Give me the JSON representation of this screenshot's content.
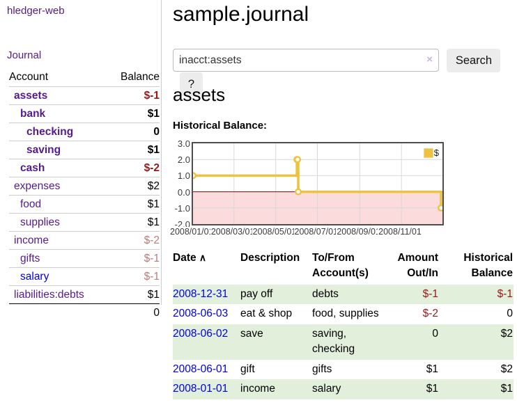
{
  "app": {
    "brand": "hledger-web",
    "nav_journal": "Journal"
  },
  "sidebar": {
    "accounts": {
      "headers": {
        "account": "Account",
        "balance": "Balance"
      },
      "rows": [
        {
          "account": "assets",
          "balance": "$-1",
          "level": 1,
          "bold": true,
          "neg": "strong",
          "link": "purple"
        },
        {
          "account": "bank",
          "balance": "$1",
          "level": 2,
          "bold": true,
          "neg": null,
          "link": "purple"
        },
        {
          "account": "checking",
          "balance": "0",
          "level": 3,
          "bold": true,
          "neg": null,
          "link": "purple"
        },
        {
          "account": "saving",
          "balance": "$1",
          "level": 3,
          "bold": true,
          "neg": null,
          "link": "purple"
        },
        {
          "account": "cash",
          "balance": "$-2",
          "level": 2,
          "bold": true,
          "neg": "strong",
          "link": "purple"
        },
        {
          "account": "expenses",
          "balance": "$2",
          "level": 1,
          "bold": false,
          "neg": null,
          "link": "purple"
        },
        {
          "account": "food",
          "balance": "$1",
          "level": 2,
          "bold": false,
          "neg": null,
          "link": "purple"
        },
        {
          "account": "supplies",
          "balance": "$1",
          "level": 2,
          "bold": false,
          "neg": null,
          "link": "purple"
        },
        {
          "account": "income",
          "balance": "$-2",
          "level": 1,
          "bold": false,
          "neg": "soft",
          "link": "purple"
        },
        {
          "account": "gifts",
          "balance": "$-1",
          "level": 2,
          "bold": false,
          "neg": "soft",
          "link": "purple"
        },
        {
          "account": "salary",
          "balance": "$-1",
          "level": 2,
          "bold": false,
          "neg": "soft",
          "link": "blue"
        },
        {
          "account": "liabilities:debts",
          "balance": "$1",
          "level": 1,
          "bold": false,
          "neg": null,
          "link": "purple"
        }
      ],
      "total": "0"
    }
  },
  "main": {
    "title": "sample.journal",
    "search": {
      "value": "inacct:assets",
      "clear_icon": "×",
      "button": "Search",
      "help_button": "?"
    },
    "account_heading": "assets"
  },
  "chart_data": {
    "type": "line",
    "step": true,
    "title": "Historical Balance:",
    "series": [
      {
        "name": "$",
        "color": "#edc240",
        "points": [
          {
            "x": "2008-01-01",
            "y": 1
          },
          {
            "x": "2008-06-01",
            "y": 2
          },
          {
            "x": "2008-06-02",
            "y": 2
          },
          {
            "x": "2008-06-03",
            "y": 0
          },
          {
            "x": "2008-12-31",
            "y": -1
          }
        ]
      }
    ],
    "xrange": [
      "2008-01-01",
      "2008-12-31"
    ],
    "ylim": [
      -2,
      3
    ],
    "yticks": [
      3.0,
      2.0,
      1.0,
      0.0,
      -1.0,
      -2.0
    ],
    "xticks": [
      "2008/01/01",
      "2008/03/01",
      "2008/05/01",
      "2008/07/01",
      "2008/09/01",
      "2008/11/01"
    ],
    "grid": true,
    "legend_position": "top-right",
    "legend_label": "$",
    "colors": {
      "line": "#edc240",
      "marker_fill": "#ffffff",
      "negative_region": "#fbdbdb",
      "zero_line": "#8b0000",
      "gridline": "#d8d8d8",
      "border": "#4d4d4d"
    }
  },
  "register_table": {
    "headers": {
      "date": "Date",
      "sort_icon": "∧",
      "description": "Description",
      "accounts": "To/From Account(s)",
      "amount": "Amount Out/In",
      "balance": "Historical Balance"
    },
    "rows": [
      {
        "date": "2008-12-31",
        "description": "pay off",
        "accounts": "debts",
        "amount": "$-1",
        "amount_neg": true,
        "balance": "$-1",
        "balance_neg": true
      },
      {
        "date": "2008-06-03",
        "description": "eat & shop",
        "accounts": "food, supplies",
        "amount": "$-2",
        "amount_neg": true,
        "balance": "0",
        "balance_neg": false
      },
      {
        "date": "2008-06-02",
        "description": "save",
        "accounts": "saving, checking",
        "amount": "0",
        "amount_neg": false,
        "balance": "$2",
        "balance_neg": false
      },
      {
        "date": "2008-06-01",
        "description": "gift",
        "accounts": "gifts",
        "amount": "$1",
        "amount_neg": false,
        "balance": "$2",
        "balance_neg": false
      },
      {
        "date": "2008-01-01",
        "description": "income",
        "accounts": "salary",
        "amount": "$1",
        "amount_neg": false,
        "balance": "$1",
        "balance_neg": false
      }
    ]
  }
}
